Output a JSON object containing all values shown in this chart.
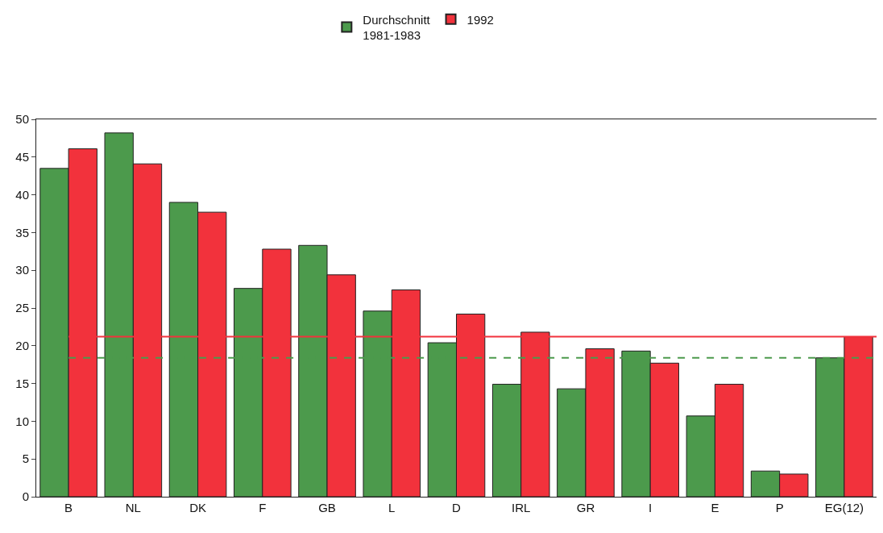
{
  "chart_data": {
    "type": "bar",
    "categories": [
      "B",
      "NL",
      "DK",
      "F",
      "GB",
      "L",
      "D",
      "IRL",
      "GR",
      "I",
      "E",
      "P",
      "EG(12)"
    ],
    "series": [
      {
        "name": "Durchschnitt\n1981-1983",
        "color": "#4c9a4c",
        "values": [
          43.5,
          48.2,
          39.0,
          27.6,
          33.3,
          24.6,
          20.4,
          14.9,
          14.3,
          19.3,
          10.7,
          3.4,
          18.4
        ]
      },
      {
        "name": "1992",
        "color": "#f2323c",
        "values": [
          46.1,
          44.1,
          37.7,
          32.8,
          29.4,
          27.4,
          24.2,
          21.8,
          19.6,
          17.7,
          14.9,
          3.0,
          21.2
        ]
      }
    ],
    "ylim": [
      0,
      50
    ],
    "yticks": [
      0,
      5,
      10,
      15,
      20,
      25,
      30,
      35,
      40,
      45,
      50
    ],
    "grid": false,
    "legend": "top",
    "ref_lines": [
      {
        "axis": "y",
        "value": 21.2,
        "color": "#f2323c",
        "line_style": "solid"
      },
      {
        "axis": "y",
        "value": 18.4,
        "color": "#4c9a4c",
        "line_style": "dashed"
      }
    ]
  }
}
